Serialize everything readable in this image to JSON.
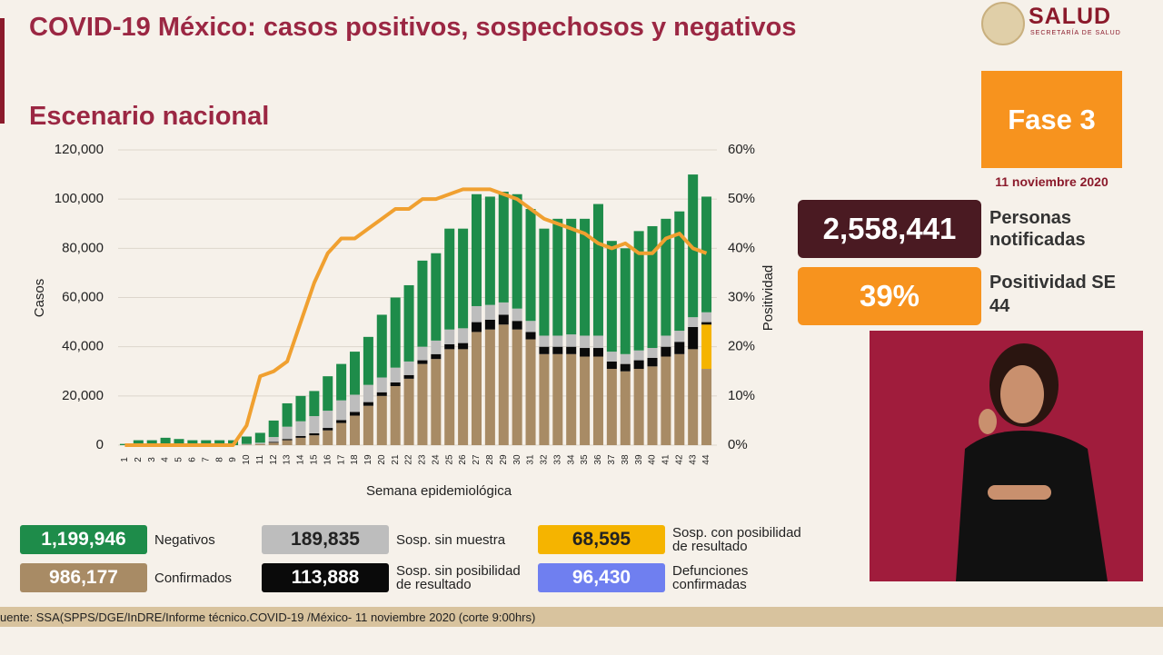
{
  "header": {
    "title": "COVID-19 México: casos positivos, sospechosos y negativos",
    "subtitle": "Escenario nacional",
    "logo": "SALUD",
    "logo_sub": "SECRETARÍA DE SALUD"
  },
  "panel": {
    "phase": "Fase 3",
    "date": "11 noviembre 2020",
    "notified_value": "2,558,441",
    "notified_label": "Personas notificadas",
    "positivity_value": "39%",
    "positivity_label": "Positividad SE 44"
  },
  "footer": "uente: SSA(SPPS/DGE/InDRE/Informe técnico.COVID-19 /México- 11 noviembre 2020 (corte 9:00hrs)",
  "chart_data": {
    "type": "stacked_bar_line",
    "x_label": "Semana epidemiológica",
    "y_label": "Casos",
    "y2_label": "Positividad",
    "categories": [
      "1",
      "2",
      "3",
      "4",
      "5",
      "6",
      "7",
      "8",
      "9",
      "10",
      "11",
      "12",
      "13",
      "14",
      "15",
      "16",
      "17",
      "18",
      "19",
      "20",
      "21",
      "22",
      "23",
      "24",
      "25",
      "26",
      "27",
      "28",
      "29",
      "30",
      "31",
      "32",
      "33",
      "34",
      "35",
      "36",
      "37",
      "38",
      "39",
      "40",
      "41",
      "42",
      "43",
      "44"
    ],
    "ylim": [
      0,
      120000
    ],
    "yticks": [
      0,
      {
        "value": 20000,
        "label": "20,000"
      },
      {
        "value": 40000,
        "label": "40,000"
      },
      {
        "value": 60000,
        "label": "60,000"
      },
      {
        "value": 80000,
        "label": "80,000"
      },
      {
        "value": 100000,
        "label": "100,000"
      },
      {
        "value": 120000,
        "label": "120,000"
      }
    ],
    "y2lim": [
      0,
      60
    ],
    "y2ticks": [
      {
        "value": 0,
        "label": "0%"
      },
      {
        "value": 10,
        "label": "10%"
      },
      {
        "value": 20,
        "label": "20%"
      },
      {
        "value": 30,
        "label": "30%"
      },
      {
        "value": 40,
        "label": "40%"
      },
      {
        "value": 50,
        "label": "50%"
      },
      {
        "value": 60,
        "label": "60%"
      }
    ],
    "grid": true,
    "series": [
      {
        "name": "Confirmados",
        "total": "986,177",
        "color": "#a88b65",
        "values": [
          0,
          0,
          0,
          0,
          0,
          0,
          0,
          0,
          0,
          200,
          500,
          1000,
          2000,
          3000,
          4000,
          6000,
          9000,
          12000,
          16000,
          20000,
          24000,
          27000,
          33000,
          35000,
          39000,
          39000,
          46000,
          47000,
          49000,
          47000,
          43000,
          37000,
          37000,
          37000,
          36000,
          36000,
          31000,
          30000,
          31000,
          32000,
          36000,
          37000,
          39000,
          31000
        ]
      },
      {
        "name": "Sosp. con posibilidad de resultado",
        "total": "68,595",
        "color": "#f5b400",
        "values": [
          0,
          0,
          0,
          0,
          0,
          0,
          0,
          0,
          0,
          0,
          0,
          0,
          0,
          0,
          0,
          0,
          0,
          0,
          0,
          0,
          0,
          0,
          0,
          0,
          0,
          0,
          0,
          0,
          0,
          0,
          0,
          0,
          0,
          0,
          0,
          0,
          0,
          0,
          0,
          0,
          0,
          0,
          0,
          18000
        ]
      },
      {
        "name": "Sosp. sin posibilidad de resultado",
        "total": "113,888",
        "color": "#0a0a0a",
        "values": [
          0,
          0,
          0,
          0,
          0,
          0,
          0,
          0,
          0,
          0,
          0,
          300,
          500,
          700,
          800,
          1000,
          1200,
          1500,
          1500,
          1500,
          1500,
          1500,
          1500,
          2000,
          2000,
          2500,
          4000,
          4000,
          4000,
          3500,
          3000,
          3000,
          3000,
          3000,
          3500,
          3500,
          3000,
          3000,
          3500,
          3500,
          4000,
          5000,
          9000,
          1000
        ]
      },
      {
        "name": "Sosp. sin muestra",
        "total": "189,835",
        "color": "#bdbdbd",
        "values": [
          0,
          0,
          0,
          0,
          0,
          0,
          0,
          0,
          0,
          300,
          500,
          2000,
          5000,
          6000,
          7000,
          7000,
          8000,
          7000,
          7000,
          6000,
          6000,
          5500,
          5500,
          5500,
          6000,
          6000,
          6500,
          6000,
          5000,
          5000,
          4500,
          4500,
          4500,
          5000,
          5000,
          5000,
          4000,
          4000,
          4000,
          4000,
          4500,
          4500,
          4000,
          4000
        ]
      },
      {
        "name": "Negativos",
        "total": "1,199,946",
        "color": "#1e8c4a",
        "values": [
          500,
          2000,
          2000,
          3000,
          2500,
          2000,
          2000,
          2000,
          2000,
          3000,
          4000,
          6700,
          9500,
          10300,
          10200,
          14000,
          14800,
          17500,
          19500,
          25500,
          28500,
          31000,
          35000,
          35500,
          41000,
          40500,
          45500,
          44000,
          45000,
          46500,
          45500,
          43500,
          47500,
          47000,
          47500,
          53500,
          45000,
          43000,
          48500,
          49500,
          47500,
          48500,
          58000,
          47000
        ]
      }
    ],
    "line": {
      "axis": "y2",
      "color": "#f0a030",
      "values": [
        0,
        0,
        0,
        0,
        0,
        0,
        0,
        0,
        0,
        4,
        14,
        15,
        17,
        25,
        33,
        39,
        42,
        42,
        44,
        46,
        48,
        48,
        50,
        50,
        51,
        52,
        52,
        52,
        51,
        50,
        48,
        46,
        45,
        44,
        43,
        41,
        40,
        41,
        39,
        39,
        42,
        43,
        40,
        39
      ]
    },
    "extra_legend": {
      "name": "Defunciones confirmadas",
      "total": "96,430",
      "color": "#6f7ff0"
    }
  }
}
